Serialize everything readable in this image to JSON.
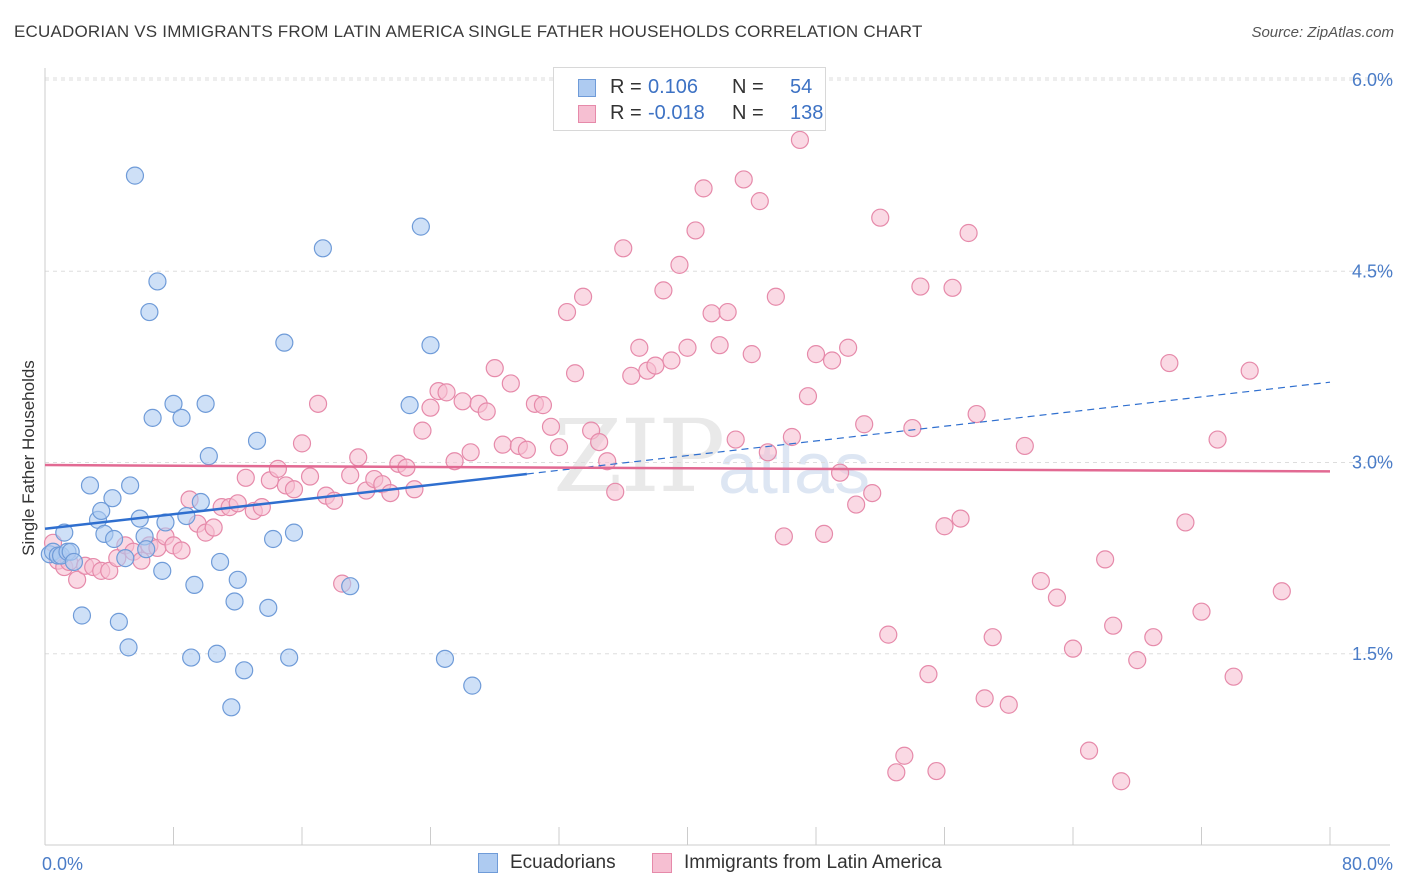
{
  "title": "ECUADORIAN VS IMMIGRANTS FROM LATIN AMERICA SINGLE FATHER HOUSEHOLDS CORRELATION CHART",
  "source": "Source: ZipAtlas.com",
  "watermark": {
    "zip": "ZIP",
    "atlas": "atlas"
  },
  "legend": {
    "r_label": "R =",
    "n_label": "N =",
    "rows": [
      {
        "r": "0.106",
        "n": "54"
      },
      {
        "r": "-0.018",
        "n": "138"
      }
    ]
  },
  "bottom_legend": [
    "Ecuadorians",
    "Immigrants from Latin America"
  ],
  "colors": {
    "blue_fill": "#aecbf1",
    "blue_stroke": "#6f9bd8",
    "blue_line": "#2f6fcf",
    "pink_fill": "#f6bfd2",
    "pink_stroke": "#e68aaa",
    "pink_line": "#e26a93",
    "axis_text": "#4a7cc7",
    "grid": "#dddddd"
  },
  "chart_data": {
    "type": "scatter",
    "title": "ECUADORIAN VS IMMIGRANTS FROM LATIN AMERICA SINGLE FATHER HOUSEHOLDS CORRELATION CHART",
    "xlabel": "",
    "ylabel": "Single Father Households",
    "xlim": [
      0,
      80
    ],
    "ylim": [
      0,
      6.2
    ],
    "x_tick_labels": [
      {
        "v": 0,
        "label": "0.0%"
      },
      {
        "v": 80,
        "label": "80.0%"
      }
    ],
    "y_ticks": [
      {
        "v": 1.5,
        "label": "1.5%"
      },
      {
        "v": 3.0,
        "label": "3.0%"
      },
      {
        "v": 4.5,
        "label": "4.5%"
      },
      {
        "v": 6.0,
        "label": "6.0%"
      }
    ],
    "series": [
      {
        "name": "Ecuadorians",
        "r": 0.106,
        "n": 54,
        "trend": {
          "x0": 0,
          "y0": 2.48,
          "x1": 30,
          "y1": 2.91,
          "x_dash_end": 80,
          "y_dash_end": 3.63
        },
        "points": [
          [
            0.3,
            2.28
          ],
          [
            0.5,
            2.3
          ],
          [
            0.8,
            2.27
          ],
          [
            1.0,
            2.27
          ],
          [
            1.2,
            2.45
          ],
          [
            1.4,
            2.3
          ],
          [
            1.6,
            2.3
          ],
          [
            1.8,
            2.22
          ],
          [
            2.3,
            1.8
          ],
          [
            2.8,
            2.82
          ],
          [
            3.3,
            2.55
          ],
          [
            3.5,
            2.62
          ],
          [
            3.7,
            2.44
          ],
          [
            4.2,
            2.72
          ],
          [
            4.3,
            2.4
          ],
          [
            4.6,
            1.75
          ],
          [
            5.0,
            2.25
          ],
          [
            5.2,
            1.55
          ],
          [
            5.3,
            2.82
          ],
          [
            5.6,
            5.25
          ],
          [
            5.9,
            2.56
          ],
          [
            6.2,
            2.42
          ],
          [
            6.3,
            2.32
          ],
          [
            6.5,
            4.18
          ],
          [
            6.7,
            3.35
          ],
          [
            7.0,
            4.42
          ],
          [
            7.3,
            2.15
          ],
          [
            7.5,
            2.53
          ],
          [
            8.0,
            3.46
          ],
          [
            8.5,
            3.35
          ],
          [
            8.8,
            2.58
          ],
          [
            9.1,
            1.47
          ],
          [
            9.3,
            2.04
          ],
          [
            9.7,
            2.69
          ],
          [
            10.0,
            3.46
          ],
          [
            10.2,
            3.05
          ],
          [
            10.7,
            1.5
          ],
          [
            10.9,
            2.22
          ],
          [
            11.6,
            1.08
          ],
          [
            11.8,
            1.91
          ],
          [
            12.0,
            2.08
          ],
          [
            12.4,
            1.37
          ],
          [
            13.2,
            3.17
          ],
          [
            13.9,
            1.86
          ],
          [
            14.2,
            2.4
          ],
          [
            14.9,
            3.94
          ],
          [
            15.2,
            1.47
          ],
          [
            15.5,
            2.45
          ],
          [
            17.3,
            4.68
          ],
          [
            19.0,
            2.03
          ],
          [
            22.7,
            3.45
          ],
          [
            23.4,
            4.85
          ],
          [
            24.0,
            3.92
          ],
          [
            24.9,
            1.46
          ],
          [
            26.6,
            1.25
          ]
        ]
      },
      {
        "name": "Immigrants from Latin America",
        "r": -0.018,
        "n": 138,
        "trend": {
          "x0": 0,
          "y0": 2.98,
          "x1": 80,
          "y1": 2.93
        },
        "points": [
          [
            0.5,
            2.37
          ],
          [
            0.8,
            2.23
          ],
          [
            1.2,
            2.18
          ],
          [
            1.5,
            2.22
          ],
          [
            2.0,
            2.08
          ],
          [
            2.5,
            2.19
          ],
          [
            3.0,
            2.18
          ],
          [
            3.5,
            2.15
          ],
          [
            4.0,
            2.15
          ],
          [
            4.5,
            2.25
          ],
          [
            5.0,
            2.35
          ],
          [
            5.5,
            2.3
          ],
          [
            6.0,
            2.23
          ],
          [
            6.5,
            2.35
          ],
          [
            7.0,
            2.33
          ],
          [
            7.5,
            2.42
          ],
          [
            8.0,
            2.35
          ],
          [
            8.5,
            2.31
          ],
          [
            9.0,
            2.71
          ],
          [
            9.5,
            2.52
          ],
          [
            10.0,
            2.45
          ],
          [
            10.5,
            2.49
          ],
          [
            11.0,
            2.65
          ],
          [
            11.5,
            2.65
          ],
          [
            12.0,
            2.68
          ],
          [
            12.5,
            2.88
          ],
          [
            13.0,
            2.62
          ],
          [
            13.5,
            2.65
          ],
          [
            14.0,
            2.86
          ],
          [
            14.5,
            2.95
          ],
          [
            15.0,
            2.82
          ],
          [
            15.5,
            2.79
          ],
          [
            16.0,
            3.15
          ],
          [
            16.5,
            2.89
          ],
          [
            17.0,
            3.46
          ],
          [
            17.5,
            2.74
          ],
          [
            18.0,
            2.7
          ],
          [
            18.5,
            2.05
          ],
          [
            19.0,
            2.9
          ],
          [
            19.5,
            3.04
          ],
          [
            20.0,
            2.78
          ],
          [
            20.5,
            2.87
          ],
          [
            21.0,
            2.83
          ],
          [
            21.5,
            2.76
          ],
          [
            22.0,
            2.99
          ],
          [
            22.5,
            2.96
          ],
          [
            23.0,
            2.79
          ],
          [
            23.5,
            3.25
          ],
          [
            24.0,
            3.43
          ],
          [
            24.5,
            3.56
          ],
          [
            25.0,
            3.55
          ],
          [
            25.5,
            3.01
          ],
          [
            26.0,
            3.48
          ],
          [
            26.5,
            3.08
          ],
          [
            27.0,
            3.46
          ],
          [
            27.5,
            3.4
          ],
          [
            28.0,
            3.74
          ],
          [
            28.5,
            3.14
          ],
          [
            29.0,
            3.62
          ],
          [
            29.5,
            3.13
          ],
          [
            30.0,
            3.1
          ],
          [
            30.5,
            3.46
          ],
          [
            31.0,
            3.45
          ],
          [
            31.5,
            3.28
          ],
          [
            32.0,
            3.12
          ],
          [
            32.5,
            4.18
          ],
          [
            33.0,
            3.7
          ],
          [
            33.5,
            4.3
          ],
          [
            34.0,
            3.25
          ],
          [
            34.5,
            3.16
          ],
          [
            35.0,
            3.01
          ],
          [
            35.5,
            2.77
          ],
          [
            36.0,
            4.68
          ],
          [
            36.5,
            3.68
          ],
          [
            37.0,
            3.9
          ],
          [
            37.5,
            3.72
          ],
          [
            38.0,
            3.76
          ],
          [
            38.5,
            4.35
          ],
          [
            39.0,
            3.8
          ],
          [
            39.5,
            4.55
          ],
          [
            40.0,
            3.9
          ],
          [
            40.5,
            4.82
          ],
          [
            41.0,
            5.15
          ],
          [
            41.5,
            4.17
          ],
          [
            42.0,
            3.92
          ],
          [
            42.5,
            4.18
          ],
          [
            43.0,
            3.18
          ],
          [
            43.5,
            5.22
          ],
          [
            44.0,
            3.85
          ],
          [
            44.5,
            5.05
          ],
          [
            45.0,
            3.08
          ],
          [
            45.5,
            4.3
          ],
          [
            46.0,
            2.42
          ],
          [
            46.5,
            3.2
          ],
          [
            47.0,
            5.53
          ],
          [
            47.5,
            3.52
          ],
          [
            48.0,
            3.85
          ],
          [
            48.5,
            2.44
          ],
          [
            49.0,
            3.8
          ],
          [
            49.5,
            2.92
          ],
          [
            50.0,
            3.9
          ],
          [
            50.5,
            2.67
          ],
          [
            51.0,
            3.3
          ],
          [
            51.5,
            2.76
          ],
          [
            52.0,
            4.92
          ],
          [
            52.5,
            1.65
          ],
          [
            53.0,
            0.57
          ],
          [
            53.5,
            0.7
          ],
          [
            54.0,
            3.27
          ],
          [
            54.5,
            4.38
          ],
          [
            55.0,
            1.34
          ],
          [
            55.5,
            0.58
          ],
          [
            56.0,
            2.5
          ],
          [
            56.5,
            4.37
          ],
          [
            57.0,
            2.56
          ],
          [
            57.5,
            4.8
          ],
          [
            58.0,
            3.38
          ],
          [
            58.5,
            1.15
          ],
          [
            59.0,
            1.63
          ],
          [
            60.0,
            1.1
          ],
          [
            61.0,
            3.13
          ],
          [
            62.0,
            2.07
          ],
          [
            63.0,
            1.94
          ],
          [
            64.0,
            1.54
          ],
          [
            65.0,
            0.74
          ],
          [
            66.0,
            2.24
          ],
          [
            66.5,
            1.72
          ],
          [
            67.0,
            0.5
          ],
          [
            68.0,
            1.45
          ],
          [
            69.0,
            1.63
          ],
          [
            70.0,
            3.78
          ],
          [
            71.0,
            2.53
          ],
          [
            72.0,
            1.83
          ],
          [
            73.0,
            3.18
          ],
          [
            74.0,
            1.32
          ],
          [
            75.0,
            3.72
          ],
          [
            77.0,
            1.99
          ]
        ]
      }
    ]
  }
}
